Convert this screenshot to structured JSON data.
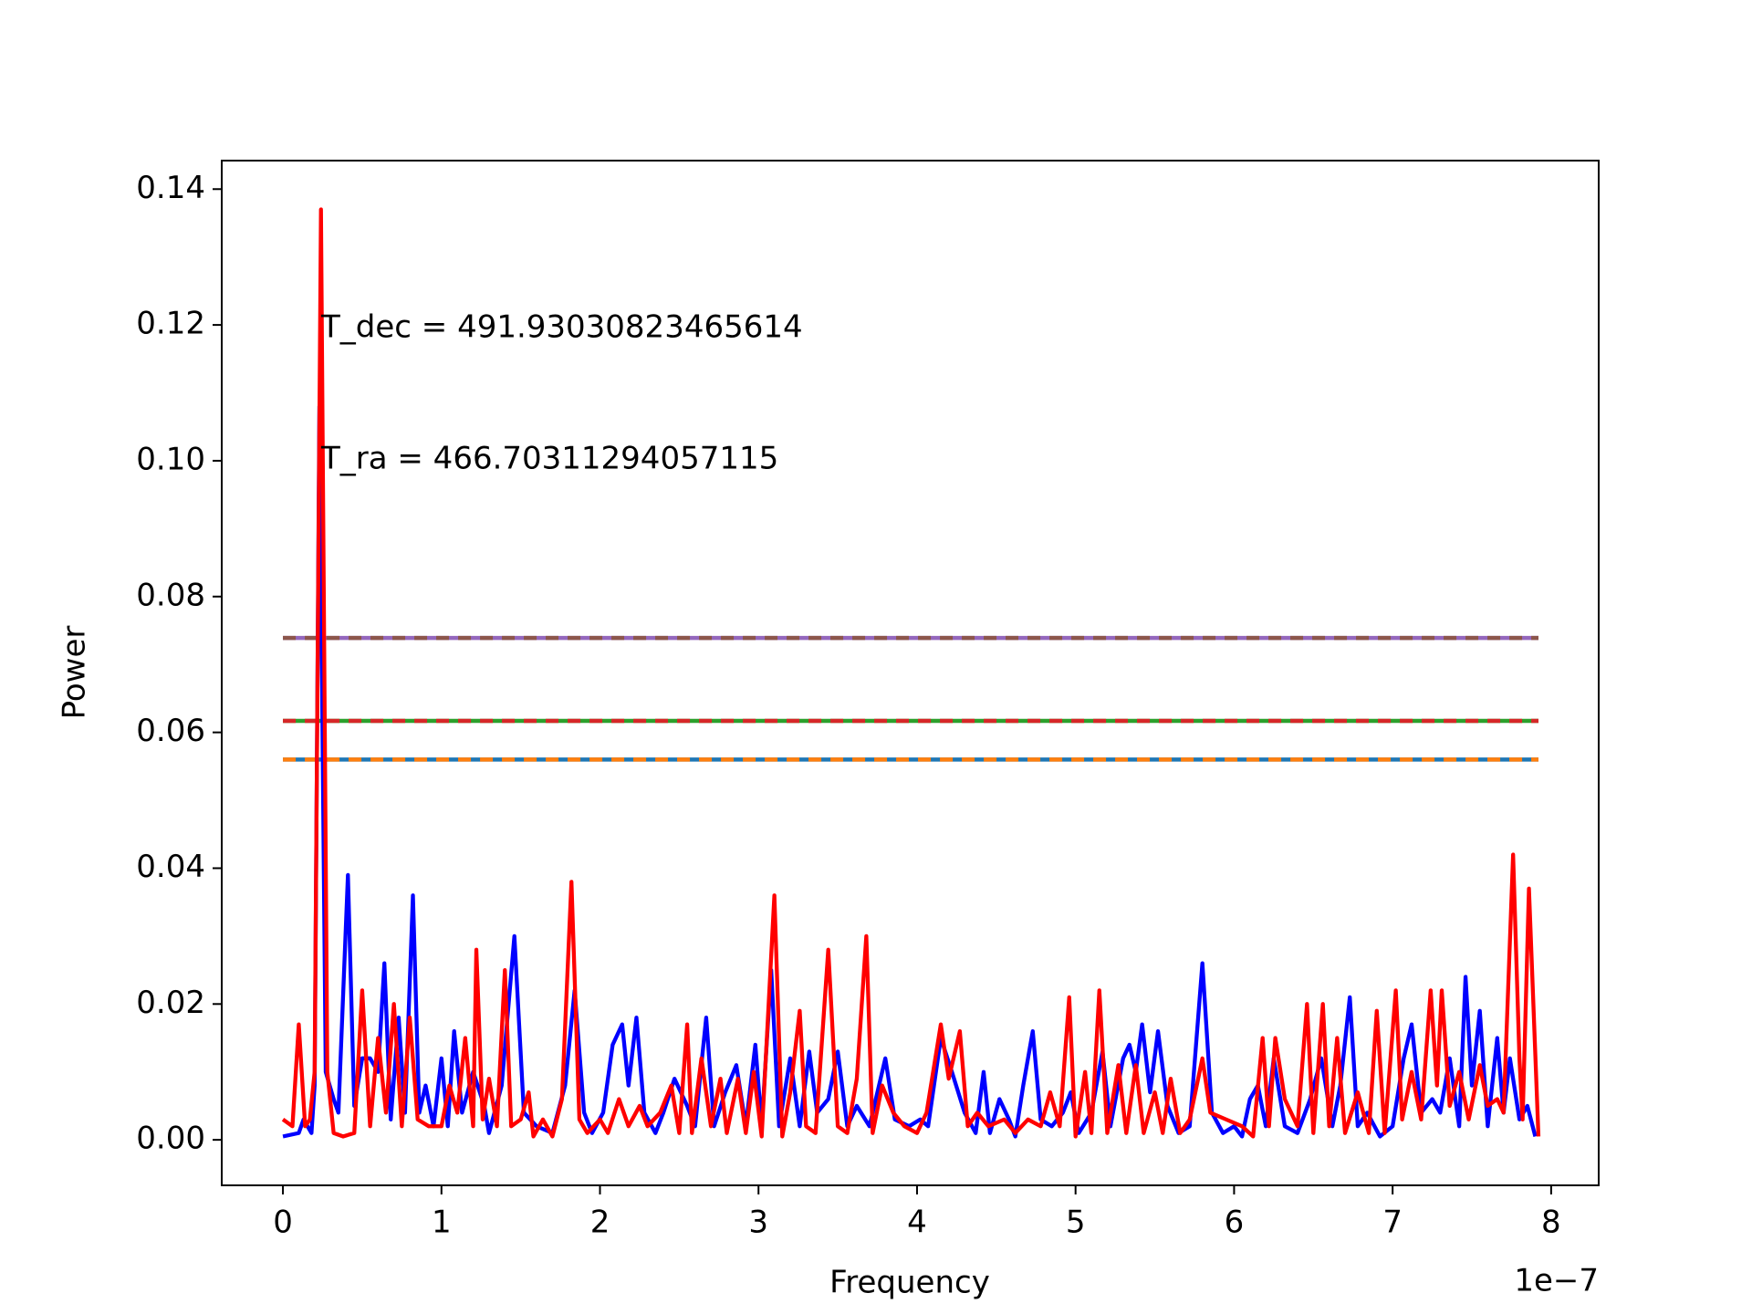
{
  "chart_data": {
    "type": "line",
    "xlabel": "Frequency",
    "ylabel": "Power",
    "x_offset_label": "1e−7",
    "annotations": [
      "T_dec = 491.93030823465614",
      "T_ra = 466.70311294057115"
    ],
    "xlim": [
      -0.386,
      8.3
    ],
    "ylim": [
      -0.0067,
      0.1442
    ],
    "xticks": [
      0,
      1,
      2,
      3,
      4,
      5,
      6,
      7,
      8
    ],
    "yticks": [
      {
        "value": 0,
        "label": "0.00"
      },
      0.02,
      0.04,
      0.06,
      0.08,
      {
        "value": 0.1,
        "label": "0.10"
      },
      0.12,
      0.14
    ],
    "hlines": [
      {
        "value": 0.056,
        "color": "#1f77b4",
        "xmin": 0,
        "xmax": 7.92
      },
      {
        "value": 0.056,
        "color": "#ff7f0e",
        "xmin": 0,
        "xmax": 7.92
      },
      {
        "value": 0.0617,
        "color": "#2ca02c",
        "xmin": 0,
        "xmax": 7.92
      },
      {
        "value": 0.0617,
        "color": "#d62728",
        "xmin": 0,
        "xmax": 7.92
      },
      {
        "value": 0.0739,
        "color": "#9467bd",
        "xmin": 0,
        "xmax": 7.92
      },
      {
        "value": 0.0739,
        "color": "#8c564b",
        "xmin": 0,
        "xmax": 7.92
      }
    ],
    "series": [
      {
        "color": "#0000ff",
        "x": [
          0,
          0.1,
          0.13,
          0.18,
          0.2,
          0.23,
          0.27,
          0.32,
          0.35,
          0.41,
          0.45,
          0.5,
          0.55,
          0.6,
          0.64,
          0.68,
          0.73,
          0.77,
          0.82,
          0.86,
          0.9,
          0.95,
          1.0,
          1.04,
          1.08,
          1.13,
          1.2,
          1.27,
          1.3,
          1.38,
          1.46,
          1.52,
          1.6,
          1.7,
          1.78,
          1.84,
          1.9,
          1.95,
          2.02,
          2.08,
          2.14,
          2.18,
          2.23,
          2.28,
          2.35,
          2.4,
          2.47,
          2.55,
          2.6,
          2.67,
          2.72,
          2.79,
          2.86,
          2.92,
          2.98,
          3.02,
          3.08,
          3.13,
          3.2,
          3.26,
          3.32,
          3.37,
          3.44,
          3.5,
          3.56,
          3.62,
          3.7,
          3.8,
          3.86,
          3.95,
          4.02,
          4.07,
          4.15,
          4.22,
          4.3,
          4.37,
          4.42,
          4.46,
          4.52,
          4.58,
          4.62,
          4.67,
          4.73,
          4.78,
          4.85,
          4.92,
          4.97,
          5.02,
          5.1,
          5.17,
          5.22,
          5.3,
          5.34,
          5.38,
          5.42,
          5.47,
          5.52,
          5.58,
          5.65,
          5.72,
          5.8,
          5.86,
          5.93,
          6.0,
          6.05,
          6.1,
          6.15,
          6.2,
          6.25,
          6.32,
          6.4,
          6.48,
          6.55,
          6.62,
          6.67,
          6.73,
          6.78,
          6.84,
          6.92,
          7.0,
          7.07,
          7.12,
          7.18,
          7.25,
          7.3,
          7.36,
          7.42,
          7.46,
          7.5,
          7.55,
          7.6,
          7.66,
          7.7,
          7.74,
          7.8,
          7.85,
          7.9
        ],
        "values": [
          0.0005,
          0.001,
          0.003,
          0.001,
          0.008,
          0.108,
          0.01,
          0.006,
          0.004,
          0.039,
          0.005,
          0.012,
          0.012,
          0.01,
          0.026,
          0.003,
          0.018,
          0.004,
          0.036,
          0.004,
          0.008,
          0.002,
          0.012,
          0.002,
          0.016,
          0.004,
          0.01,
          0.005,
          0.001,
          0.008,
          0.03,
          0.004,
          0.002,
          0.001,
          0.008,
          0.022,
          0.004,
          0.001,
          0.004,
          0.014,
          0.017,
          0.008,
          0.018,
          0.004,
          0.001,
          0.004,
          0.009,
          0.005,
          0.002,
          0.018,
          0.002,
          0.007,
          0.011,
          0.002,
          0.014,
          0.002,
          0.025,
          0.002,
          0.012,
          0.002,
          0.013,
          0.004,
          0.006,
          0.013,
          0.002,
          0.005,
          0.002,
          0.012,
          0.003,
          0.002,
          0.003,
          0.002,
          0.015,
          0.01,
          0.004,
          0.001,
          0.01,
          0.001,
          0.006,
          0.003,
          0.0005,
          0.008,
          0.016,
          0.003,
          0.002,
          0.004,
          0.007,
          0.001,
          0.004,
          0.013,
          0.002,
          0.012,
          0.014,
          0.01,
          0.017,
          0.007,
          0.016,
          0.005,
          0.001,
          0.002,
          0.026,
          0.004,
          0.001,
          0.002,
          0.0005,
          0.006,
          0.008,
          0.002,
          0.012,
          0.002,
          0.001,
          0.006,
          0.012,
          0.002,
          0.008,
          0.021,
          0.002,
          0.004,
          0.0005,
          0.002,
          0.012,
          0.017,
          0.004,
          0.006,
          0.004,
          0.012,
          0.002,
          0.024,
          0.008,
          0.019,
          0.002,
          0.015,
          0.004,
          0.012,
          0.003,
          0.005,
          0.0005
        ]
      },
      {
        "color": "#ff0000",
        "x": [
          0,
          0.06,
          0.1,
          0.14,
          0.17,
          0.2,
          0.24,
          0.28,
          0.32,
          0.38,
          0.45,
          0.5,
          0.55,
          0.6,
          0.65,
          0.7,
          0.75,
          0.8,
          0.85,
          0.92,
          1.0,
          1.05,
          1.1,
          1.15,
          1.2,
          1.22,
          1.26,
          1.3,
          1.35,
          1.4,
          1.44,
          1.5,
          1.55,
          1.58,
          1.64,
          1.7,
          1.76,
          1.82,
          1.87,
          1.92,
          2.0,
          2.05,
          2.12,
          2.18,
          2.25,
          2.3,
          2.38,
          2.45,
          2.5,
          2.55,
          2.58,
          2.64,
          2.7,
          2.76,
          2.8,
          2.87,
          2.92,
          2.97,
          3.02,
          3.1,
          3.15,
          3.2,
          3.26,
          3.3,
          3.36,
          3.44,
          3.5,
          3.56,
          3.62,
          3.68,
          3.72,
          3.78,
          3.85,
          3.92,
          4.0,
          4.06,
          4.15,
          4.2,
          4.27,
          4.32,
          4.38,
          4.45,
          4.55,
          4.62,
          4.7,
          4.78,
          4.84,
          4.9,
          4.96,
          5.0,
          5.06,
          5.1,
          5.15,
          5.2,
          5.27,
          5.32,
          5.38,
          5.43,
          5.5,
          5.55,
          5.6,
          5.66,
          5.72,
          5.8,
          5.85,
          5.95,
          6.05,
          6.12,
          6.18,
          6.22,
          6.26,
          6.32,
          6.4,
          6.46,
          6.5,
          6.56,
          6.6,
          6.65,
          6.7,
          6.78,
          6.85,
          6.9,
          6.95,
          7.02,
          7.06,
          7.12,
          7.18,
          7.24,
          7.28,
          7.31,
          7.36,
          7.42,
          7.48,
          7.55,
          7.6,
          7.66,
          7.7,
          7.76,
          7.8,
          7.82,
          7.86,
          7.92
        ],
        "values": [
          0.003,
          0.002,
          0.017,
          0.002,
          0.003,
          0.01,
          0.137,
          0.01,
          0.001,
          0.0005,
          0.001,
          0.022,
          0.002,
          0.015,
          0.004,
          0.02,
          0.002,
          0.018,
          0.003,
          0.002,
          0.002,
          0.008,
          0.004,
          0.015,
          0.002,
          0.028,
          0.003,
          0.009,
          0.002,
          0.025,
          0.002,
          0.003,
          0.007,
          0.0005,
          0.003,
          0.0005,
          0.006,
          0.038,
          0.003,
          0.001,
          0.003,
          0.001,
          0.006,
          0.002,
          0.005,
          0.002,
          0.004,
          0.008,
          0.001,
          0.017,
          0.001,
          0.012,
          0.002,
          0.009,
          0.001,
          0.009,
          0.001,
          0.01,
          0.0005,
          0.036,
          0.0005,
          0.007,
          0.019,
          0.002,
          0.001,
          0.028,
          0.002,
          0.001,
          0.009,
          0.03,
          0.001,
          0.008,
          0.004,
          0.002,
          0.001,
          0.004,
          0.017,
          0.009,
          0.016,
          0.002,
          0.004,
          0.002,
          0.003,
          0.001,
          0.003,
          0.002,
          0.007,
          0.002,
          0.021,
          0.0005,
          0.01,
          0.001,
          0.022,
          0.001,
          0.011,
          0.001,
          0.011,
          0.001,
          0.007,
          0.001,
          0.009,
          0.001,
          0.003,
          0.012,
          0.004,
          0.003,
          0.002,
          0.0005,
          0.015,
          0.002,
          0.015,
          0.006,
          0.002,
          0.02,
          0.001,
          0.02,
          0.002,
          0.015,
          0.001,
          0.007,
          0.001,
          0.019,
          0.001,
          0.022,
          0.003,
          0.01,
          0.003,
          0.022,
          0.008,
          0.022,
          0.005,
          0.01,
          0.003,
          0.011,
          0.005,
          0.006,
          0.004,
          0.042,
          0.012,
          0.003,
          0.037,
          0.0005
        ]
      }
    ]
  }
}
